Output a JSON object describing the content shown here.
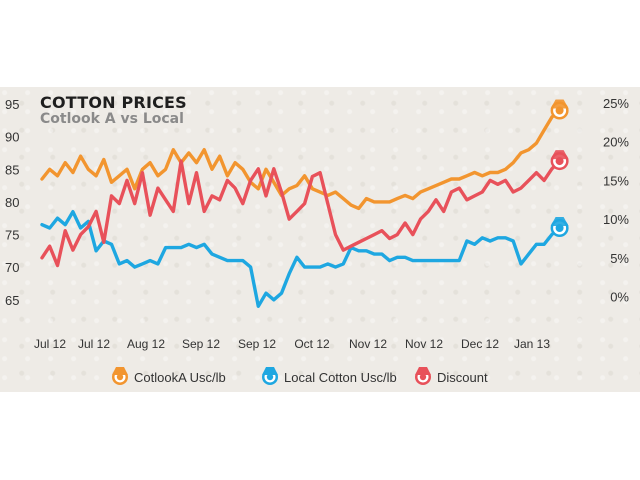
{
  "chart_data": {
    "type": "line",
    "title": "COTTON PRICES",
    "subtitle": "Cotlook A vs Local",
    "x_labels": [
      "Jul 12",
      "Jul 12",
      "Aug 12",
      "Sep 12",
      "Sep 12",
      "Oct 12",
      "Nov 12",
      "Nov 12",
      "Dec 12",
      "Jan 13"
    ],
    "left_axis": {
      "ticks": [
        65,
        70,
        75,
        80,
        85,
        90,
        95
      ],
      "ylim": [
        60,
        95
      ]
    },
    "right_axis": {
      "ticks": [
        "0%",
        "5%",
        "10%",
        "15%",
        "20%",
        "25%"
      ],
      "ylim": [
        -5,
        25
      ]
    },
    "x_range": [
      0,
      100
    ],
    "colors": {
      "cotlook": "#f2952f",
      "local": "#1ea7e1",
      "discount": "#e8515a"
    },
    "series": [
      {
        "name": "CotlookA Usc/lb",
        "axis": "left",
        "x": [
          0,
          1.5,
          3,
          4.5,
          6,
          7.5,
          9,
          10.5,
          12,
          13.5,
          15,
          16.5,
          18,
          19.5,
          21,
          22.5,
          24,
          25.5,
          27,
          28.5,
          30,
          31.5,
          33,
          34.5,
          36,
          37.5,
          39,
          40.5,
          42,
          43.5,
          45,
          46.5,
          48,
          49.5,
          51,
          52.5,
          54,
          55.5,
          57,
          58.5,
          60,
          61.5,
          63,
          64.5,
          66,
          67.5,
          69,
          70.5,
          72,
          73.5,
          75,
          76.5,
          78,
          79.5,
          81,
          82.5,
          84,
          85.5,
          87,
          88.5,
          90,
          91.5,
          93,
          94.5,
          96,
          97.5,
          99,
          100.5
        ],
        "values": [
          83.5,
          85,
          84,
          86,
          84.5,
          87,
          85,
          84,
          86.5,
          83,
          84,
          85,
          82,
          85,
          86,
          84,
          85,
          88,
          86,
          87.5,
          86,
          88,
          85,
          87,
          84,
          86,
          85,
          83,
          82,
          85,
          83,
          81,
          82,
          82.5,
          84,
          82,
          81.5,
          81,
          81.5,
          80.5,
          79.5,
          79,
          80.5,
          80,
          80,
          80,
          80.5,
          81,
          80.5,
          81.5,
          82,
          82.5,
          83,
          83.5,
          83.5,
          84,
          84.5,
          84,
          84.5,
          84.5,
          85,
          86,
          87.5,
          88,
          89,
          91,
          93,
          94
        ]
      },
      {
        "name": "Local Cotton Usc/lb",
        "axis": "left",
        "x": [
          0,
          1.5,
          3,
          4.5,
          6,
          7.5,
          9,
          10.5,
          12,
          13.5,
          15,
          16.5,
          18,
          19.5,
          21,
          22.5,
          24,
          25.5,
          27,
          28.5,
          30,
          31.5,
          33,
          34.5,
          36,
          37.5,
          39,
          40.5,
          42,
          43.5,
          45,
          46.5,
          48,
          49.5,
          51,
          52.5,
          54,
          55.5,
          57,
          58.5,
          60,
          61.5,
          63,
          64.5,
          66,
          67.5,
          69,
          70.5,
          72,
          73.5,
          75,
          76.5,
          78,
          79.5,
          81,
          82.5,
          84,
          85.5,
          87,
          88.5,
          90,
          91.5,
          93,
          94.5,
          96,
          97.5,
          99,
          100.5
        ],
        "values": [
          76.5,
          76,
          77.5,
          76.5,
          78.5,
          76,
          77,
          72.5,
          74,
          73.5,
          70.5,
          71,
          70,
          70.5,
          71,
          70.5,
          73,
          73,
          73,
          73.5,
          73,
          73.5,
          72,
          71.5,
          71,
          71,
          71,
          70,
          64,
          66,
          65,
          66,
          69,
          71.5,
          70,
          70,
          70,
          70.5,
          70,
          70.5,
          73,
          72.5,
          72.5,
          72,
          72,
          71,
          71.5,
          71.5,
          71,
          71,
          71,
          71,
          71,
          71,
          71,
          74,
          73.5,
          74.5,
          74,
          74.5,
          74.5,
          74,
          70.5,
          72,
          73.5,
          73.5,
          75,
          76
        ]
      },
      {
        "name": "Discount",
        "axis": "right",
        "x": [
          0,
          1.5,
          3,
          4.5,
          6,
          7.5,
          9,
          10.5,
          12,
          13.5,
          15,
          16.5,
          18,
          19.5,
          21,
          22.5,
          24,
          25.5,
          27,
          28.5,
          30,
          31.5,
          33,
          34.5,
          36,
          37.5,
          39,
          40.5,
          42,
          43.5,
          45,
          46.5,
          48,
          49.5,
          51,
          52.5,
          54,
          55.5,
          57,
          58.5,
          60,
          61.5,
          63,
          64.5,
          66,
          67.5,
          69,
          70.5,
          72,
          73.5,
          75,
          76.5,
          78,
          79.5,
          81,
          82.5,
          84,
          85.5,
          87,
          88.5,
          90,
          91.5,
          93,
          94.5,
          96,
          97.5,
          99,
          100.5
        ],
        "values": [
          5,
          6.5,
          4,
          8.5,
          6,
          8,
          9,
          11,
          7,
          13,
          12,
          15,
          12,
          16,
          10.5,
          14,
          12.5,
          11,
          17.5,
          12,
          16,
          11,
          13,
          12.5,
          15,
          14,
          12,
          15,
          16.5,
          13,
          16.5,
          13.5,
          10,
          11,
          12,
          15.5,
          16,
          12,
          8,
          6,
          6.5,
          7,
          7.5,
          8,
          8.5,
          7.5,
          8,
          9.5,
          8,
          10,
          11,
          12.5,
          11,
          13.5,
          14,
          12.5,
          13,
          13.5,
          15,
          14.5,
          15,
          13.5,
          14,
          15,
          16,
          15,
          16.5,
          17.5
        ]
      }
    ],
    "legend": [
      {
        "label": "CotlookA Usc/lb"
      },
      {
        "label": "Local Cotton Usc/lb"
      },
      {
        "label": "Discount"
      }
    ]
  }
}
